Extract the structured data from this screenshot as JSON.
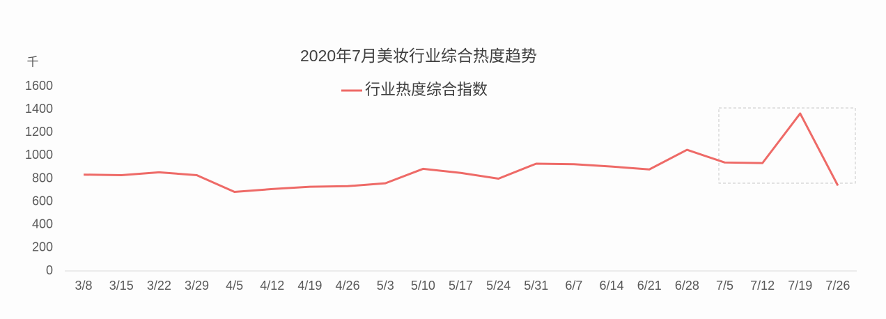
{
  "chart_data": {
    "type": "line",
    "title": "2020年7月美妆行业综合热度趋势",
    "y_unit": "千",
    "categories": [
      "3/8",
      "3/15",
      "3/22",
      "3/29",
      "4/5",
      "4/12",
      "4/19",
      "4/26",
      "5/3",
      "5/10",
      "5/17",
      "5/24",
      "5/31",
      "6/7",
      "6/14",
      "6/21",
      "6/28",
      "7/5",
      "7/12",
      "7/19",
      "7/26"
    ],
    "series": [
      {
        "name": "行业热度综合指数",
        "color": "#ee6a67",
        "values": [
          835,
          830,
          855,
          830,
          685,
          710,
          730,
          735,
          760,
          885,
          850,
          800,
          930,
          925,
          905,
          880,
          1050,
          940,
          935,
          1365,
          740
        ]
      }
    ],
    "ylim": [
      0,
      1600
    ],
    "yticks": [
      0,
      200,
      400,
      600,
      800,
      1000,
      1200,
      1400,
      1600
    ],
    "grid": false,
    "legend": "top"
  }
}
